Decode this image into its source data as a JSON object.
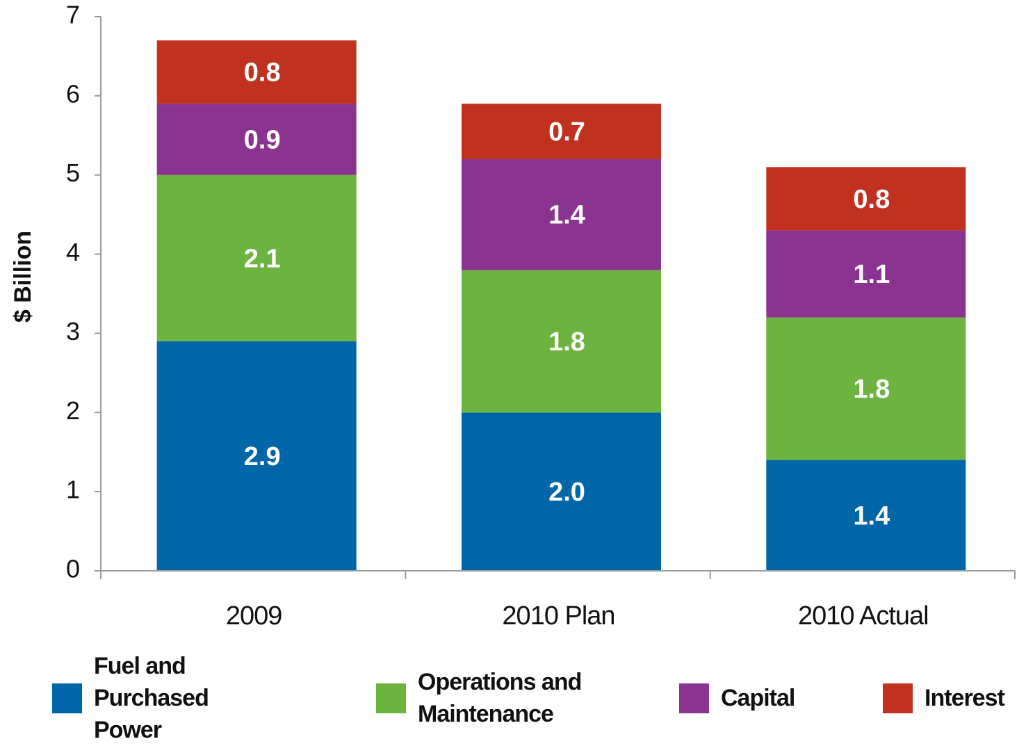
{
  "chart_data": {
    "type": "stacked_bar",
    "y_label": "$ Billion",
    "categories": [
      "2009",
      "2010 Plan",
      "2010 Actual"
    ],
    "series": [
      {
        "name": "Fuel and Purchased Power",
        "color": "#0066a8",
        "values": [
          2.9,
          2.0,
          1.4
        ],
        "value_labels": [
          "2.9",
          "2.0",
          "1.4"
        ]
      },
      {
        "name": "Operations and Maintenance",
        "color": "#6db33f",
        "values": [
          2.1,
          1.8,
          1.8
        ],
        "value_labels": [
          "2.1",
          "1.8",
          "1.8"
        ]
      },
      {
        "name": "Capital",
        "color": "#8a3390",
        "values": [
          0.9,
          1.4,
          1.1
        ],
        "value_labels": [
          "0.9",
          "1.4",
          "1.1"
        ]
      },
      {
        "name": "Interest",
        "color": "#c0311f",
        "values": [
          0.8,
          0.7,
          0.8
        ],
        "value_labels": [
          "0.8",
          "0.7",
          "0.8"
        ]
      }
    ],
    "ylim": [
      0,
      7
    ],
    "yticks": [
      0,
      1,
      2,
      3,
      4,
      5,
      6,
      7
    ],
    "legend": "bottom"
  }
}
